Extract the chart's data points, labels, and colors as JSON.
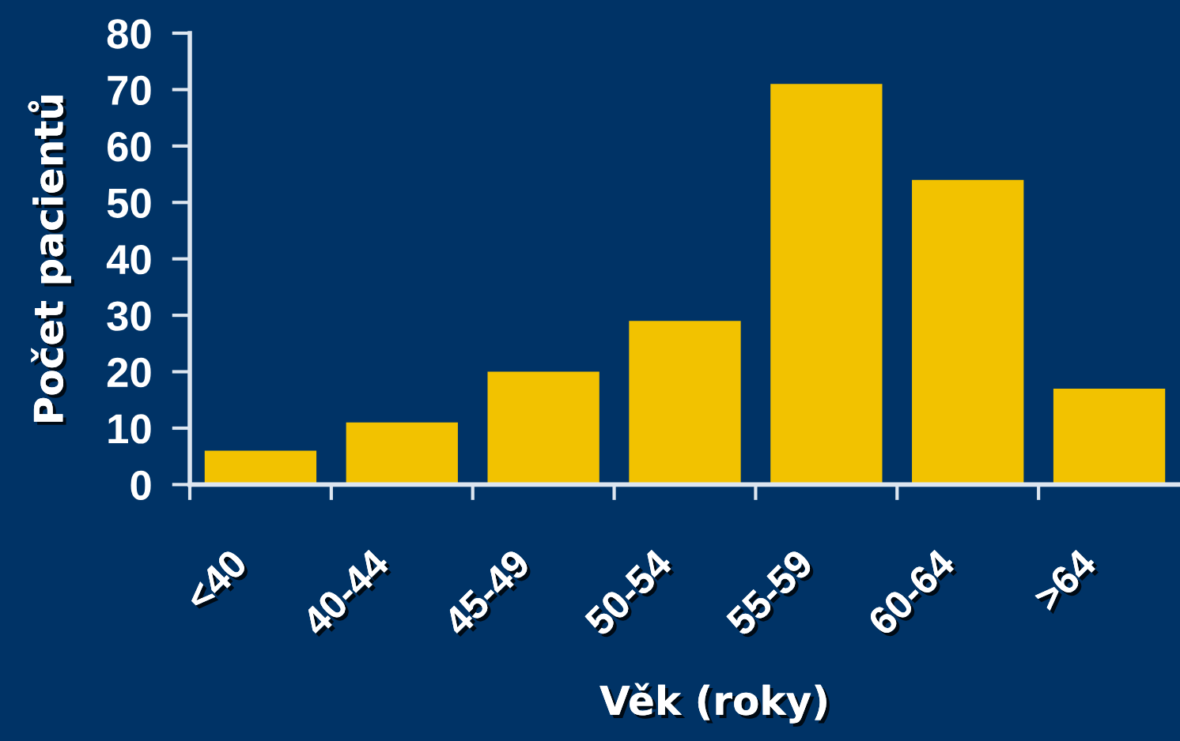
{
  "chart_data": {
    "type": "bar",
    "xlabel": "Věk (roky)",
    "ylabel": "Počet pacientů",
    "categories": [
      "<40",
      "40-44",
      "45-49",
      "50-54",
      "55-59",
      "60-64",
      ">64"
    ],
    "values": [
      6,
      11,
      20,
      29,
      71,
      54,
      17
    ],
    "color": "#f2c200",
    "ylim": [
      0,
      80
    ],
    "yticks": [
      0,
      10,
      20,
      30,
      40,
      50,
      60,
      70,
      80
    ],
    "grid": false
  }
}
